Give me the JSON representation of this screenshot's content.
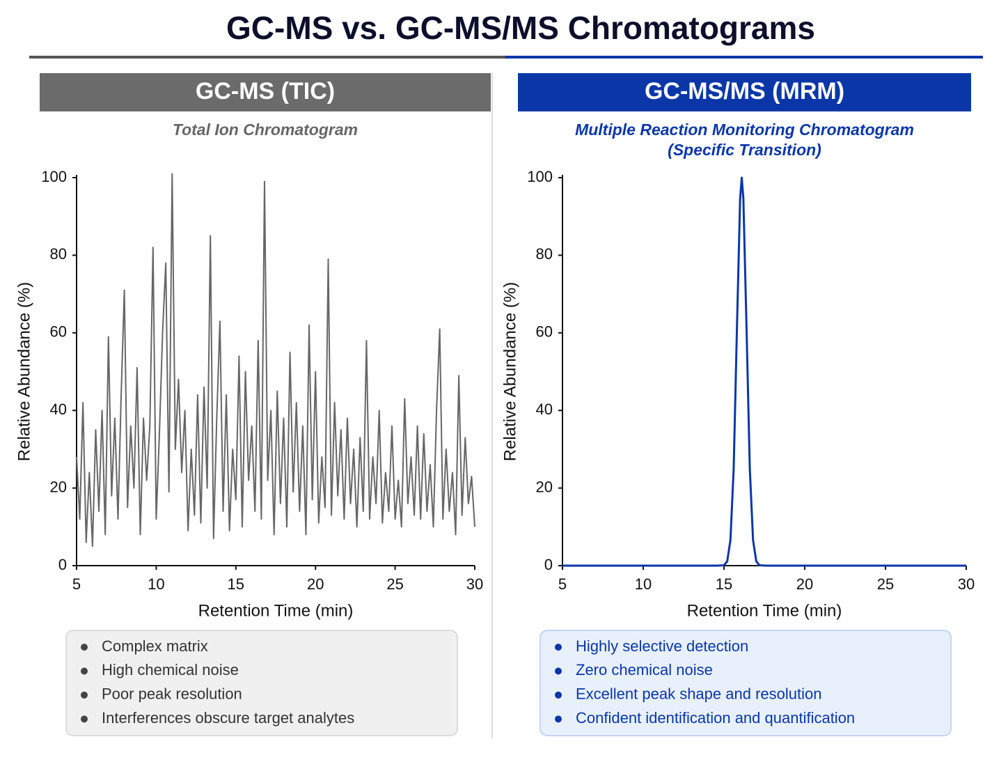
{
  "title": "GC-MS vs. GC-MS/MS Chromatograms",
  "chart_data": [
    {
      "type": "line",
      "header": "GC-MS (TIC)",
      "subtitle": [
        "Total Ion Chromatogram"
      ],
      "xlabel": "Retention Time (min)",
      "ylabel": "Relative Abundance (%)",
      "x": [
        5,
        5.2,
        5.4,
        5.6,
        5.8,
        6,
        6.2,
        6.4,
        6.6,
        6.8,
        7,
        7.2,
        7.4,
        7.6,
        7.8,
        8,
        8.2,
        8.4,
        8.6,
        8.8,
        9,
        9.2,
        9.4,
        9.6,
        9.8,
        10,
        10.2,
        10.4,
        10.6,
        10.8,
        11,
        11.2,
        11.4,
        11.6,
        11.8,
        12,
        12.2,
        12.4,
        12.6,
        12.8,
        13,
        13.2,
        13.4,
        13.6,
        13.8,
        14,
        14.2,
        14.4,
        14.6,
        14.8,
        15,
        15.2,
        15.4,
        15.6,
        15.8,
        16,
        16.2,
        16.4,
        16.6,
        16.8,
        17,
        17.2,
        17.4,
        17.6,
        17.8,
        18,
        18.2,
        18.4,
        18.6,
        18.8,
        19,
        19.2,
        19.4,
        19.6,
        19.8,
        20,
        20.2,
        20.4,
        20.6,
        20.8,
        21,
        21.2,
        21.4,
        21.6,
        21.8,
        22,
        22.2,
        22.4,
        22.6,
        22.8,
        23,
        23.2,
        23.4,
        23.6,
        23.8,
        24,
        24.2,
        24.4,
        24.6,
        24.8,
        25,
        25.2,
        25.4,
        25.6,
        25.8,
        26,
        26.2,
        26.4,
        26.6,
        26.8,
        27,
        27.2,
        27.4,
        27.6,
        27.8,
        28,
        28.2,
        28.4,
        28.6,
        28.8,
        29,
        29.2,
        29.4,
        29.6,
        29.8,
        30
      ],
      "series": [
        {
          "color": "#666666",
          "values": [
            28,
            12,
            42,
            6,
            24,
            5,
            35,
            14,
            40,
            8,
            59,
            18,
            38,
            12,
            44,
            71,
            15,
            36,
            20,
            51,
            8,
            38,
            22,
            36,
            82,
            12,
            34,
            60,
            78,
            19,
            101,
            30,
            48,
            24,
            40,
            9,
            30,
            13,
            44,
            11,
            46,
            20,
            85,
            7,
            38,
            63,
            14,
            44,
            9,
            30,
            17,
            54,
            10,
            50,
            22,
            36,
            14,
            58,
            12,
            99,
            22,
            40,
            8,
            45,
            16,
            38,
            10,
            55,
            19,
            42,
            14,
            36,
            8,
            62,
            17,
            50,
            11,
            28,
            15,
            79,
            13,
            42,
            18,
            35,
            12,
            38,
            16,
            30,
            10,
            33,
            14,
            58,
            12,
            28,
            16,
            40,
            11,
            24,
            14,
            36,
            12,
            22,
            10,
            43,
            16,
            28,
            13,
            36,
            12,
            34,
            14,
            26,
            10,
            40,
            61,
            12,
            30,
            14,
            24,
            8,
            49,
            13,
            33,
            16,
            23,
            10
          ]
        }
      ],
      "xlim": [
        5,
        30
      ],
      "ylim": [
        0,
        100
      ],
      "xticks": [
        5,
        10,
        15,
        20,
        25,
        30
      ],
      "yticks": [
        0,
        20,
        40,
        60,
        80,
        100
      ],
      "notes": [
        "Complex matrix",
        "High chemical noise",
        "Poor peak resolution",
        "Interferences obscure target analytes"
      ]
    },
    {
      "type": "line",
      "header": "GC-MS/MS (MRM)",
      "subtitle": [
        "Multiple Reaction Monitoring Chromatogram",
        "(Specific Transition)"
      ],
      "xlabel": "Retention Time (min)",
      "ylabel": "Relative Abundance (%)",
      "x": [
        5,
        14,
        14.6,
        15,
        15.2,
        15.4,
        15.6,
        15.8,
        16,
        16.1,
        16.2,
        16.4,
        16.6,
        16.8,
        17,
        17.2,
        17.6,
        18.2,
        30
      ],
      "series": [
        {
          "color": "#0a36a8",
          "values": [
            0,
            0,
            0,
            0.1,
            1.1,
            6.6,
            24.9,
            60.7,
            94.6,
            100,
            94.6,
            60.7,
            24.9,
            6.6,
            1.1,
            0.1,
            0,
            0,
            0
          ]
        }
      ],
      "xlim": [
        5,
        30
      ],
      "ylim": [
        0,
        100
      ],
      "xticks": [
        5,
        10,
        15,
        20,
        25,
        30
      ],
      "yticks": [
        0,
        20,
        40,
        60,
        80,
        100
      ],
      "notes": [
        "Highly selective detection",
        "Zero chemical noise",
        "Excellent peak shape and resolution",
        "Confident identification and quantification"
      ]
    }
  ]
}
